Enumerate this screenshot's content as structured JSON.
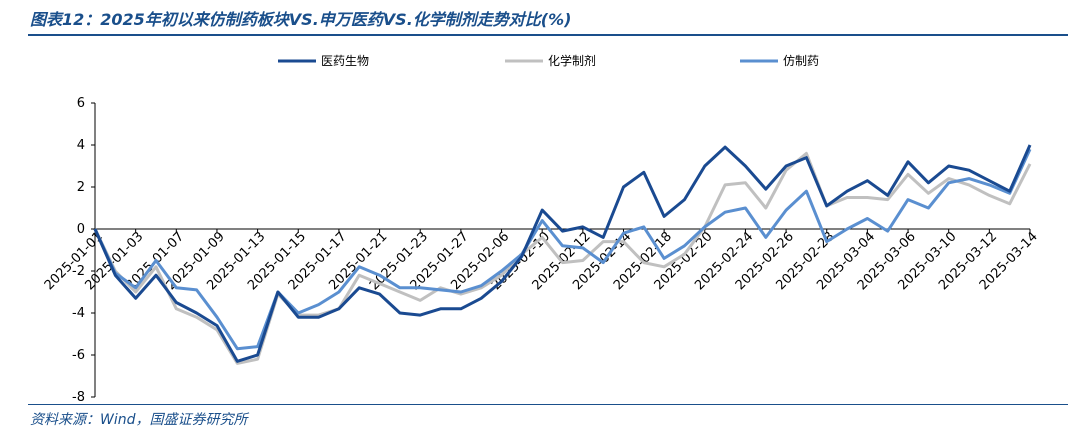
{
  "header": {
    "title": "图表12：2025年初以来仿制药板块VS.申万医药VS.化学制剂走势对比(%)"
  },
  "footer": {
    "source": "资料来源：Wind，国盛证券研究所"
  },
  "colors": {
    "series1": "#1a4a91",
    "series2": "#c0c0c0",
    "series3": "#5a8fd0",
    "accent": "#1a4f8b"
  },
  "chart_data": {
    "type": "line",
    "title": "",
    "xlabel": "",
    "ylabel": "",
    "ylim": [
      -8,
      6
    ],
    "yticks": [
      -8,
      -6,
      -4,
      -2,
      0,
      2,
      4,
      6
    ],
    "grid": false,
    "legend_position": "top",
    "xtick_labels": [
      "2025-01-01",
      "2025-01-03",
      "2025-01-07",
      "2025-01-09",
      "2025-01-13",
      "2025-01-15",
      "2025-01-17",
      "2025-01-21",
      "2025-01-23",
      "2025-01-27",
      "2025-02-06",
      "2025-02-10",
      "2025-02-12",
      "2025-02-14",
      "2025-02-18",
      "2025-02-20",
      "2025-02-24",
      "2025-02-26",
      "2025-02-28",
      "2025-03-04",
      "2025-03-06",
      "2025-03-10",
      "2025-03-12",
      "2025-03-14"
    ],
    "xtick_positions": [
      0,
      2,
      4,
      6,
      8,
      10,
      12,
      14,
      16,
      18,
      20,
      22,
      24,
      26,
      28,
      30,
      32,
      34,
      36,
      38,
      40,
      42,
      44,
      46
    ],
    "series": [
      {
        "name": "医药生物",
        "values": [
          0,
          -2.2,
          -3.3,
          -2.2,
          -3.5,
          -4,
          -4.6,
          -6.3,
          -6,
          -3,
          -4.2,
          -4.2,
          -3.8,
          -2.8,
          -3.1,
          -4,
          -4.1,
          -3.8,
          -3.8,
          -3.3,
          -2.5,
          -1.3,
          0.9,
          -0.1,
          0.1,
          -0.4,
          2,
          2.7,
          0.6,
          1.4,
          3,
          3.9,
          3,
          1.9,
          3,
          3.4,
          1.1,
          1.8,
          2.3,
          1.6,
          3.2,
          2.2,
          3,
          2.8,
          2.3,
          1.8,
          4
        ]
      },
      {
        "name": "化学制剂",
        "values": [
          0,
          -2,
          -3,
          -1.8,
          -3.8,
          -4.2,
          -4.8,
          -6.4,
          -6.2,
          -3.1,
          -4.1,
          -4.1,
          -3.8,
          -2.2,
          -2.6,
          -3,
          -3.4,
          -2.8,
          -3.1,
          -2.8,
          -2.2,
          -1.2,
          -0.4,
          -1.6,
          -1.5,
          -0.6,
          -0.6,
          -1.6,
          -1.8,
          -1.2,
          0.1,
          2.1,
          2.2,
          1,
          2.8,
          3.6,
          1.1,
          1.5,
          1.5,
          1.4,
          2.6,
          1.7,
          2.4,
          2.1,
          1.6,
          1.2,
          3.1
        ]
      },
      {
        "name": "仿制药",
        "values": [
          0,
          -2.1,
          -2.8,
          -1.5,
          -2.8,
          -2.9,
          -4.2,
          -5.7,
          -5.6,
          -3,
          -4,
          -3.6,
          -3,
          -1.8,
          -2.2,
          -2.8,
          -2.8,
          -2.9,
          -3,
          -2.7,
          -2,
          -1.2,
          0.4,
          -0.8,
          -0.9,
          -1.6,
          -0.2,
          0.1,
          -1.4,
          -0.8,
          0.1,
          0.8,
          1,
          -0.4,
          0.9,
          1.8,
          -0.6,
          0,
          0.5,
          -0.1,
          1.4,
          1,
          2.2,
          2.4,
          2.1,
          1.7,
          3.8
        ]
      }
    ]
  }
}
